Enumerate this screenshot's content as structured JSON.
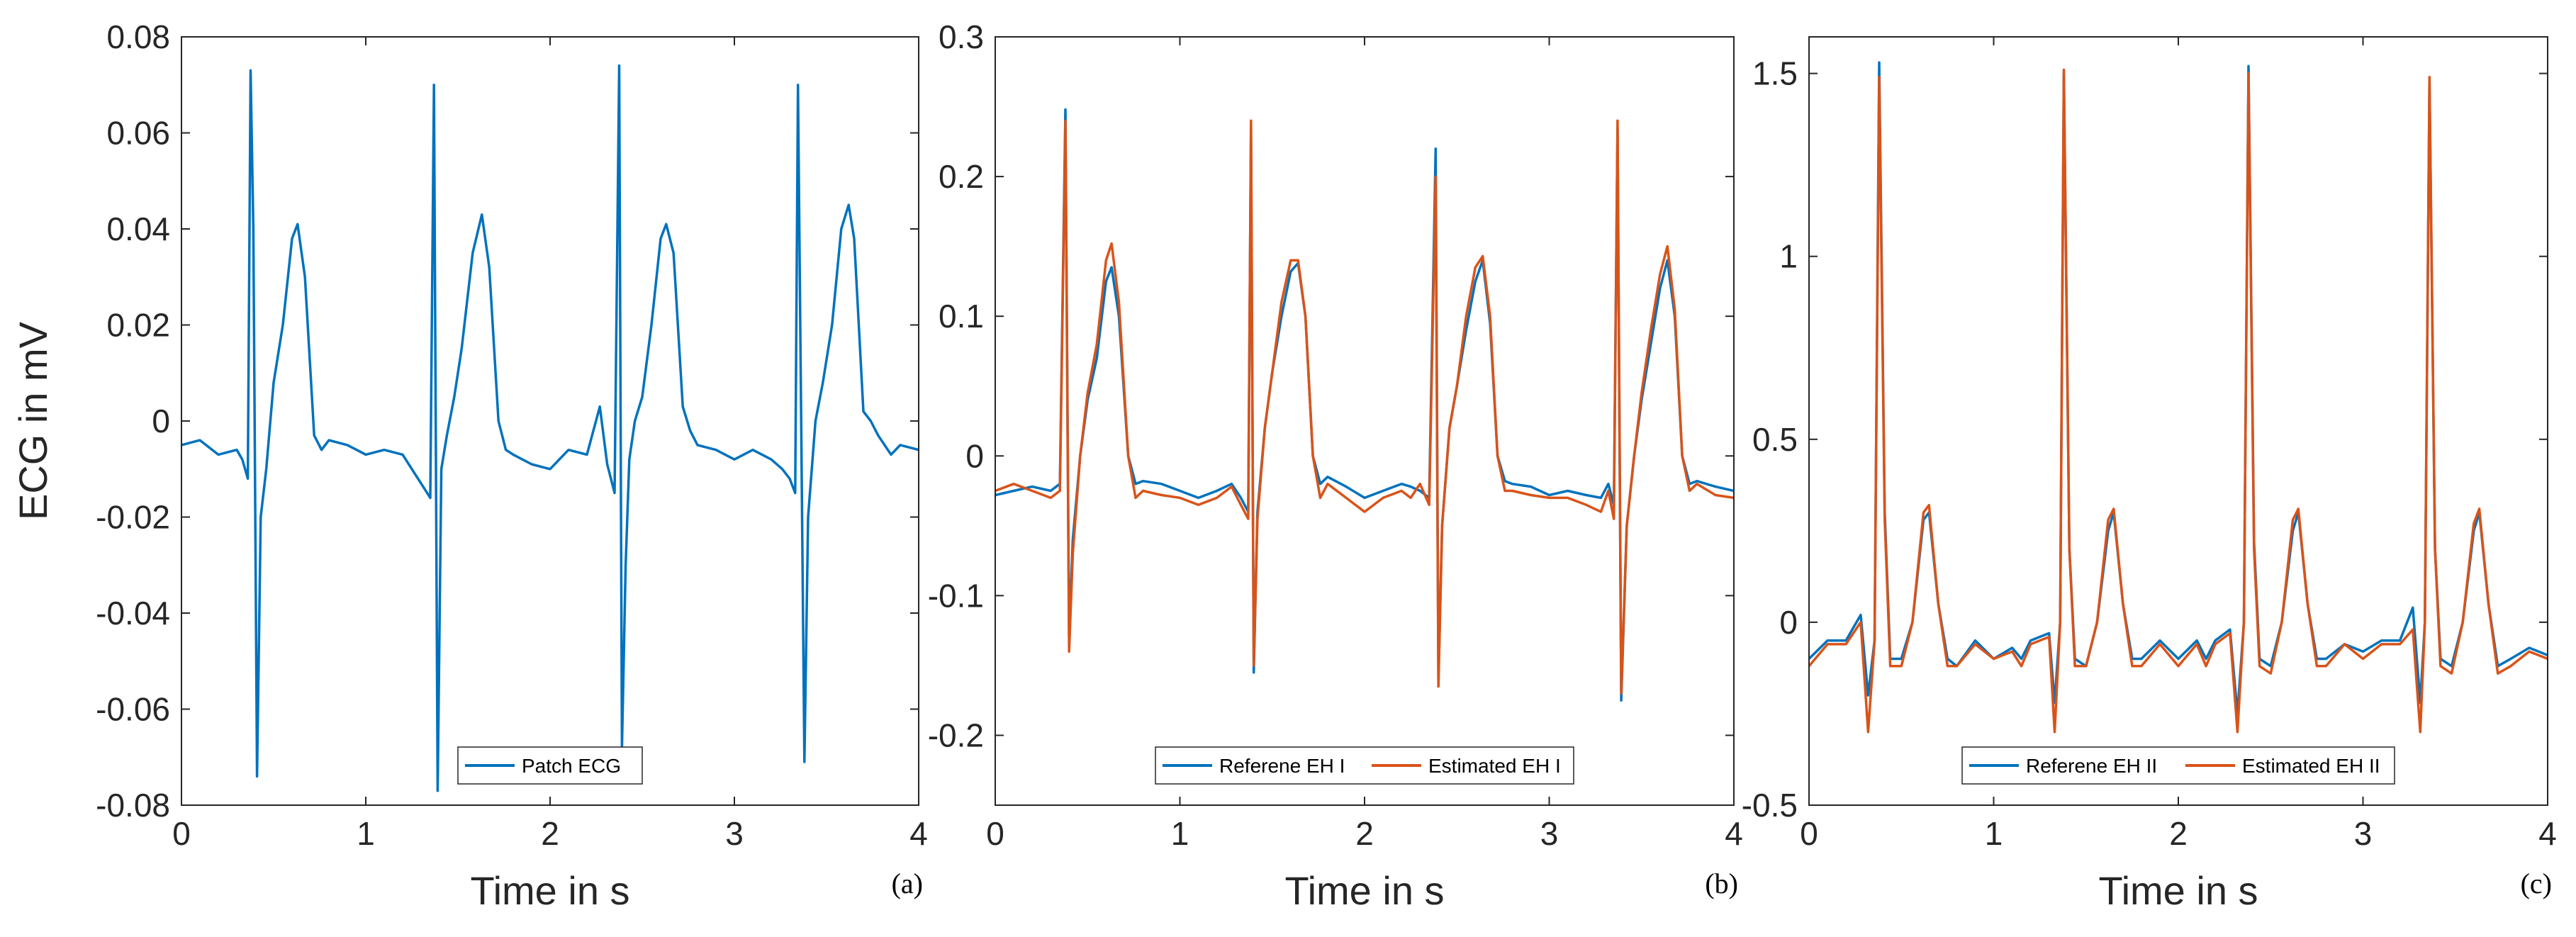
{
  "chart_data": [
    {
      "type": "line",
      "panel_label": "(a)",
      "xlabel": "Time in s",
      "ylabel": "ECG in mV",
      "xlim": [
        0,
        4
      ],
      "ylim": [
        -0.08,
        0.08
      ],
      "xticks": [
        0,
        1,
        2,
        3,
        4
      ],
      "xtick_labels": [
        "0",
        "1",
        "2",
        "3",
        "4"
      ],
      "yticks": [
        -0.08,
        -0.06,
        -0.04,
        -0.02,
        0,
        0.02,
        0.04,
        0.06,
        0.08
      ],
      "ytick_labels": [
        "-0.08",
        "-0.06",
        "-0.04",
        "-0.02",
        "0",
        "0.02",
        "0.04",
        "0.06",
        "0.08"
      ],
      "grid": false,
      "legend_position": "bottom-center",
      "series": [
        {
          "name": "Patch ECG",
          "color": "#0072BD",
          "x": [
            0.0,
            0.1,
            0.2,
            0.3,
            0.33,
            0.36,
            0.375,
            0.39,
            0.41,
            0.43,
            0.46,
            0.5,
            0.55,
            0.6,
            0.63,
            0.67,
            0.72,
            0.76,
            0.8,
            0.9,
            1.0,
            1.1,
            1.2,
            1.25,
            1.3,
            1.35,
            1.37,
            1.39,
            1.41,
            1.44,
            1.48,
            1.52,
            1.58,
            1.63,
            1.67,
            1.72,
            1.76,
            1.8,
            1.9,
            2.0,
            2.1,
            2.2,
            2.27,
            2.31,
            2.35,
            2.375,
            2.39,
            2.41,
            2.43,
            2.46,
            2.5,
            2.55,
            2.6,
            2.63,
            2.67,
            2.72,
            2.76,
            2.8,
            2.9,
            3.0,
            3.1,
            3.2,
            3.26,
            3.3,
            3.33,
            3.345,
            3.36,
            3.38,
            3.4,
            3.44,
            3.48,
            3.53,
            3.58,
            3.62,
            3.65,
            3.7,
            3.74,
            3.78,
            3.85,
            3.9,
            4.0
          ],
          "y": [
            -0.005,
            -0.004,
            -0.007,
            -0.006,
            -0.008,
            -0.012,
            0.073,
            0.04,
            -0.074,
            -0.02,
            -0.01,
            0.008,
            0.02,
            0.038,
            0.041,
            0.03,
            -0.003,
            -0.006,
            -0.004,
            -0.005,
            -0.007,
            -0.006,
            -0.007,
            -0.01,
            -0.013,
            -0.016,
            0.07,
            -0.077,
            -0.01,
            -0.003,
            0.005,
            0.015,
            0.035,
            0.043,
            0.032,
            0.0,
            -0.006,
            -0.007,
            -0.009,
            -0.01,
            -0.006,
            -0.007,
            0.003,
            -0.009,
            -0.015,
            0.074,
            -0.068,
            -0.03,
            -0.008,
            0.0,
            0.005,
            0.02,
            0.038,
            0.041,
            0.035,
            0.003,
            -0.002,
            -0.005,
            -0.006,
            -0.008,
            -0.006,
            -0.008,
            -0.01,
            -0.012,
            -0.015,
            0.07,
            0.01,
            -0.071,
            -0.02,
            0.0,
            0.008,
            0.02,
            0.04,
            0.045,
            0.038,
            0.002,
            0.0,
            -0.003,
            -0.007,
            -0.005,
            -0.006
          ]
        }
      ]
    },
    {
      "type": "line",
      "panel_label": "(b)",
      "xlabel": "Time in s",
      "ylabel": "",
      "xlim": [
        0,
        4
      ],
      "ylim": [
        -0.25,
        0.3
      ],
      "xticks": [
        0,
        1,
        2,
        3,
        4
      ],
      "xtick_labels": [
        "0",
        "1",
        "2",
        "3",
        "4"
      ],
      "yticks": [
        -0.2,
        -0.1,
        0,
        0.1,
        0.2,
        0.3
      ],
      "ytick_labels": [
        "-0.2",
        "-0.1",
        "0",
        "0.1",
        "0.2",
        "0.3"
      ],
      "grid": false,
      "legend_position": "bottom-center",
      "series": [
        {
          "name": "Referene EH I",
          "color": "#0072BD",
          "x": [
            0.0,
            0.1,
            0.2,
            0.3,
            0.35,
            0.38,
            0.4,
            0.42,
            0.46,
            0.5,
            0.55,
            0.6,
            0.63,
            0.67,
            0.72,
            0.76,
            0.8,
            0.9,
            1.0,
            1.1,
            1.2,
            1.28,
            1.33,
            1.37,
            1.385,
            1.4,
            1.42,
            1.46,
            1.5,
            1.55,
            1.6,
            1.64,
            1.68,
            1.72,
            1.76,
            1.8,
            1.9,
            2.0,
            2.1,
            2.2,
            2.25,
            2.3,
            2.35,
            2.385,
            2.4,
            2.42,
            2.46,
            2.5,
            2.55,
            2.6,
            2.64,
            2.68,
            2.72,
            2.76,
            2.8,
            2.9,
            3.0,
            3.1,
            3.2,
            3.28,
            3.32,
            3.35,
            3.37,
            3.39,
            3.42,
            3.46,
            3.5,
            3.55,
            3.6,
            3.64,
            3.68,
            3.72,
            3.76,
            3.8,
            3.9,
            4.0
          ],
          "y": [
            -0.028,
            -0.025,
            -0.022,
            -0.025,
            -0.02,
            0.248,
            -0.13,
            -0.06,
            0.0,
            0.04,
            0.07,
            0.125,
            0.135,
            0.1,
            0.0,
            -0.02,
            -0.018,
            -0.02,
            -0.025,
            -0.03,
            -0.025,
            -0.02,
            -0.03,
            -0.04,
            0.235,
            -0.155,
            -0.04,
            0.02,
            0.06,
            0.1,
            0.132,
            0.138,
            0.1,
            0.0,
            -0.02,
            -0.015,
            -0.022,
            -0.03,
            -0.025,
            -0.02,
            -0.022,
            -0.025,
            -0.03,
            0.22,
            -0.16,
            -0.05,
            0.02,
            0.05,
            0.09,
            0.125,
            0.14,
            0.095,
            0.0,
            -0.018,
            -0.02,
            -0.022,
            -0.028,
            -0.025,
            -0.028,
            -0.03,
            -0.02,
            -0.035,
            0.235,
            -0.175,
            -0.05,
            0.0,
            0.04,
            0.08,
            0.12,
            0.14,
            0.1,
            0.0,
            -0.02,
            -0.018,
            -0.022,
            -0.025
          ]
        },
        {
          "name": "Estimated EH I",
          "color": "#D95319",
          "x": [
            0.0,
            0.1,
            0.2,
            0.3,
            0.35,
            0.38,
            0.4,
            0.42,
            0.46,
            0.5,
            0.55,
            0.6,
            0.63,
            0.67,
            0.72,
            0.76,
            0.8,
            0.9,
            1.0,
            1.1,
            1.2,
            1.28,
            1.33,
            1.37,
            1.385,
            1.4,
            1.42,
            1.46,
            1.5,
            1.55,
            1.6,
            1.64,
            1.68,
            1.72,
            1.76,
            1.8,
            1.9,
            2.0,
            2.1,
            2.2,
            2.25,
            2.3,
            2.35,
            2.385,
            2.4,
            2.42,
            2.46,
            2.5,
            2.55,
            2.6,
            2.64,
            2.68,
            2.72,
            2.76,
            2.8,
            2.9,
            3.0,
            3.1,
            3.2,
            3.28,
            3.32,
            3.35,
            3.37,
            3.39,
            3.42,
            3.46,
            3.5,
            3.55,
            3.6,
            3.64,
            3.68,
            3.72,
            3.76,
            3.8,
            3.9,
            4.0
          ],
          "y": [
            -0.025,
            -0.02,
            -0.025,
            -0.03,
            -0.025,
            0.24,
            -0.14,
            -0.07,
            0.0,
            0.045,
            0.08,
            0.14,
            0.152,
            0.11,
            0.0,
            -0.03,
            -0.025,
            -0.028,
            -0.03,
            -0.035,
            -0.03,
            -0.022,
            -0.035,
            -0.045,
            0.24,
            -0.15,
            -0.045,
            0.02,
            0.06,
            0.11,
            0.14,
            0.14,
            0.1,
            0.0,
            -0.03,
            -0.02,
            -0.03,
            -0.04,
            -0.03,
            -0.025,
            -0.03,
            -0.02,
            -0.035,
            0.2,
            -0.165,
            -0.05,
            0.02,
            0.05,
            0.1,
            0.135,
            0.143,
            0.1,
            0.0,
            -0.025,
            -0.025,
            -0.028,
            -0.03,
            -0.03,
            -0.035,
            -0.04,
            -0.025,
            -0.045,
            0.24,
            -0.17,
            -0.05,
            0.0,
            0.045,
            0.09,
            0.13,
            0.15,
            0.105,
            0.0,
            -0.025,
            -0.02,
            -0.028,
            -0.03
          ]
        }
      ]
    },
    {
      "type": "line",
      "panel_label": "(c)",
      "xlabel": "Time in s",
      "ylabel": "",
      "xlim": [
        0,
        4
      ],
      "ylim": [
        -0.5,
        1.6
      ],
      "xticks": [
        0,
        1,
        2,
        3,
        4
      ],
      "xtick_labels": [
        "0",
        "1",
        "2",
        "3",
        "4"
      ],
      "yticks": [
        -0.5,
        0,
        0.5,
        1,
        1.5
      ],
      "ytick_labels": [
        "-0.5",
        "0",
        "0.5",
        "1",
        "1.5"
      ],
      "grid": false,
      "legend_position": "bottom-center",
      "series": [
        {
          "name": "Referene EH II",
          "color": "#0072BD",
          "x": [
            0.0,
            0.1,
            0.2,
            0.28,
            0.32,
            0.355,
            0.38,
            0.41,
            0.44,
            0.5,
            0.56,
            0.62,
            0.65,
            0.7,
            0.75,
            0.8,
            0.9,
            1.0,
            1.1,
            1.15,
            1.2,
            1.3,
            1.33,
            1.36,
            1.38,
            1.41,
            1.44,
            1.5,
            1.56,
            1.62,
            1.65,
            1.7,
            1.75,
            1.8,
            1.9,
            2.0,
            2.1,
            2.15,
            2.2,
            2.28,
            2.32,
            2.355,
            2.38,
            2.41,
            2.44,
            2.5,
            2.56,
            2.62,
            2.65,
            2.7,
            2.75,
            2.8,
            2.9,
            3.0,
            3.1,
            3.2,
            3.27,
            3.31,
            3.335,
            3.36,
            3.39,
            3.42,
            3.48,
            3.54,
            3.6,
            3.63,
            3.68,
            3.73,
            3.8,
            3.9,
            4.0
          ],
          "y": [
            -0.1,
            -0.05,
            -0.05,
            0.02,
            -0.2,
            -0.05,
            1.53,
            0.3,
            -0.1,
            -0.1,
            0.0,
            0.28,
            0.3,
            0.05,
            -0.1,
            -0.12,
            -0.05,
            -0.1,
            -0.07,
            -0.1,
            -0.05,
            -0.03,
            -0.22,
            0.0,
            1.5,
            0.2,
            -0.1,
            -0.12,
            0.0,
            0.25,
            0.3,
            0.05,
            -0.1,
            -0.1,
            -0.05,
            -0.1,
            -0.05,
            -0.1,
            -0.05,
            -0.02,
            -0.25,
            0.0,
            1.52,
            0.22,
            -0.1,
            -0.12,
            0.0,
            0.25,
            0.3,
            0.05,
            -0.1,
            -0.1,
            -0.06,
            -0.08,
            -0.05,
            -0.05,
            0.04,
            -0.22,
            0.0,
            1.48,
            0.2,
            -0.1,
            -0.12,
            0.0,
            0.25,
            0.3,
            0.05,
            -0.12,
            -0.1,
            -0.07,
            -0.09
          ]
        },
        {
          "name": "Estimated EH II",
          "color": "#D95319",
          "x": [
            0.0,
            0.1,
            0.2,
            0.28,
            0.32,
            0.355,
            0.38,
            0.41,
            0.44,
            0.5,
            0.56,
            0.62,
            0.65,
            0.7,
            0.75,
            0.8,
            0.9,
            1.0,
            1.1,
            1.15,
            1.2,
            1.3,
            1.33,
            1.36,
            1.38,
            1.41,
            1.44,
            1.5,
            1.56,
            1.62,
            1.65,
            1.7,
            1.75,
            1.8,
            1.9,
            2.0,
            2.1,
            2.15,
            2.2,
            2.28,
            2.32,
            2.355,
            2.38,
            2.41,
            2.44,
            2.5,
            2.56,
            2.62,
            2.65,
            2.7,
            2.75,
            2.8,
            2.9,
            3.0,
            3.1,
            3.2,
            3.27,
            3.31,
            3.335,
            3.36,
            3.39,
            3.42,
            3.48,
            3.54,
            3.6,
            3.63,
            3.68,
            3.73,
            3.8,
            3.9,
            4.0
          ],
          "y": [
            -0.12,
            -0.06,
            -0.06,
            0.0,
            -0.3,
            -0.05,
            1.49,
            0.28,
            -0.12,
            -0.12,
            0.0,
            0.3,
            0.32,
            0.05,
            -0.12,
            -0.12,
            -0.06,
            -0.1,
            -0.08,
            -0.12,
            -0.06,
            -0.04,
            -0.3,
            0.0,
            1.51,
            0.2,
            -0.12,
            -0.12,
            0.0,
            0.28,
            0.31,
            0.05,
            -0.12,
            -0.12,
            -0.06,
            -0.12,
            -0.06,
            -0.12,
            -0.06,
            -0.03,
            -0.3,
            0.0,
            1.5,
            0.2,
            -0.12,
            -0.14,
            0.0,
            0.28,
            0.31,
            0.05,
            -0.12,
            -0.12,
            -0.06,
            -0.1,
            -0.06,
            -0.06,
            -0.02,
            -0.3,
            0.0,
            1.49,
            0.2,
            -0.12,
            -0.14,
            0.0,
            0.27,
            0.31,
            0.05,
            -0.14,
            -0.12,
            -0.08,
            -0.1
          ]
        }
      ]
    }
  ]
}
